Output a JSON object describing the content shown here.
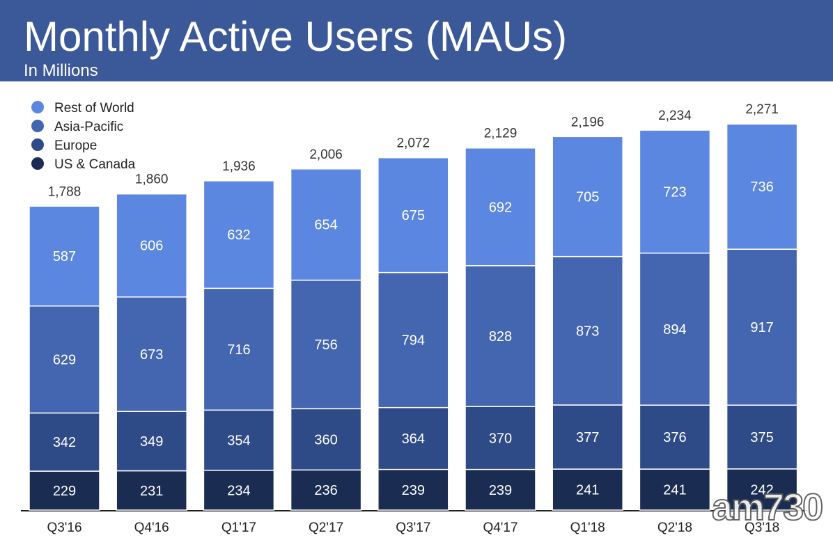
{
  "header": {
    "title": "Monthly Active Users (MAUs)",
    "subtitle": "In Millions"
  },
  "watermark": {
    "text": "am730"
  },
  "chart_data": {
    "type": "bar",
    "stacked": true,
    "categories": [
      "Q3'16",
      "Q4'16",
      "Q1'17",
      "Q2'17",
      "Q3'17",
      "Q4'17",
      "Q1'18",
      "Q2'18",
      "Q3'18"
    ],
    "totals": [
      "1,788",
      "1,860",
      "1,936",
      "2,006",
      "2,072",
      "2,129",
      "2,196",
      "2,234",
      "2,271"
    ],
    "series": [
      {
        "name": "US & Canada",
        "color": "#1a2c52",
        "values": [
          229,
          231,
          234,
          236,
          239,
          239,
          241,
          241,
          242
        ]
      },
      {
        "name": "Europe",
        "color": "#2e4a87",
        "values": [
          342,
          349,
          354,
          360,
          364,
          370,
          377,
          376,
          375
        ]
      },
      {
        "name": "Asia-Pacific",
        "color": "#4466b0",
        "values": [
          629,
          673,
          716,
          756,
          794,
          828,
          873,
          894,
          917
        ]
      },
      {
        "name": "Rest of World",
        "color": "#5b87e0",
        "values": [
          587,
          606,
          632,
          654,
          675,
          692,
          705,
          723,
          736
        ]
      }
    ],
    "legend_order": [
      "Rest of World",
      "Asia-Pacific",
      "Europe",
      "US & Canada"
    ],
    "legend_position": "top-left",
    "grid": false,
    "ylim": [
      0,
      2271
    ]
  }
}
